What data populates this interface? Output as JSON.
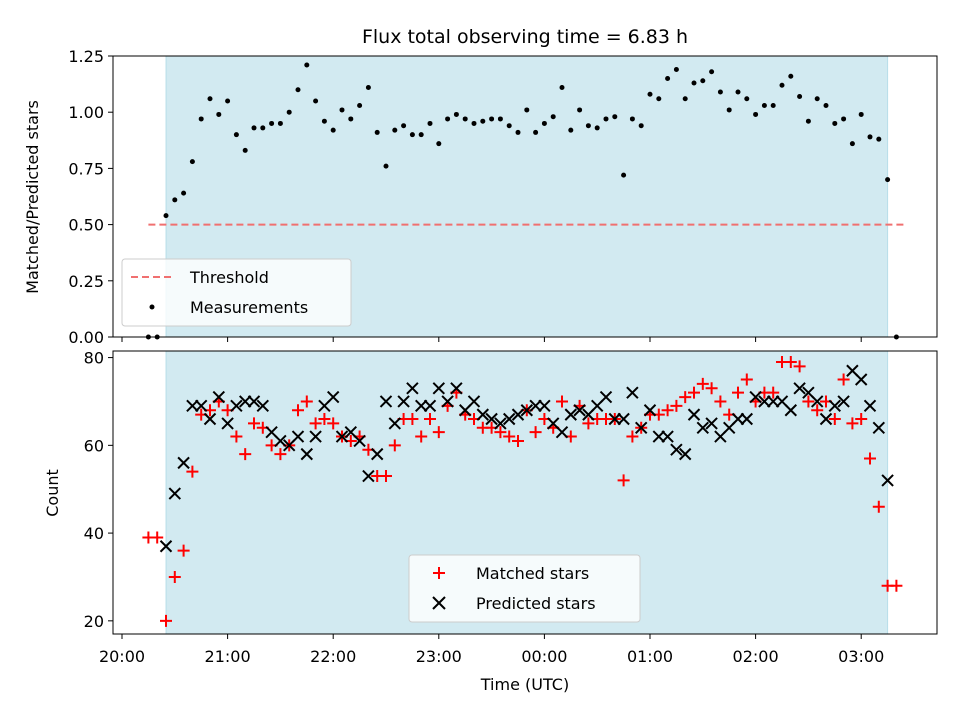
{
  "chart_data": [
    {
      "type": "scatter",
      "title": "Flux total observing time = 6.83 h",
      "ylabel": "Matched/Predicted stars",
      "ylim": [
        0,
        1.25
      ],
      "yticks": [
        "0.00",
        "0.25",
        "0.50",
        "0.75",
        "1.00",
        "1.25"
      ],
      "grid": false,
      "legend_position": "lower-left",
      "observing_span": [
        "20:25",
        "03:15"
      ],
      "threshold": {
        "name": "Threshold",
        "value": 0.5,
        "x_range": [
          "20:15",
          "03:25"
        ],
        "color": "#f07070"
      },
      "series": [
        {
          "name": "Measurements",
          "color": "#000000",
          "x": [
            "20:15",
            "20:20",
            "20:25",
            "20:30",
            "20:35",
            "20:40",
            "20:45",
            "20:50",
            "20:55",
            "21:00",
            "21:05",
            "21:10",
            "21:15",
            "21:20",
            "21:25",
            "21:30",
            "21:35",
            "21:40",
            "21:45",
            "21:50",
            "21:55",
            "22:00",
            "22:05",
            "22:10",
            "22:15",
            "22:20",
            "22:25",
            "22:30",
            "22:35",
            "22:40",
            "22:45",
            "22:50",
            "22:55",
            "23:00",
            "23:05",
            "23:10",
            "23:15",
            "23:20",
            "23:25",
            "23:30",
            "23:35",
            "23:40",
            "23:45",
            "23:50",
            "23:55",
            "00:00",
            "00:05",
            "00:10",
            "00:15",
            "00:20",
            "00:25",
            "00:30",
            "00:35",
            "00:40",
            "00:45",
            "00:50",
            "00:55",
            "01:00",
            "01:05",
            "01:10",
            "01:15",
            "01:20",
            "01:25",
            "01:30",
            "01:35",
            "01:40",
            "01:45",
            "01:50",
            "01:55",
            "02:00",
            "02:05",
            "02:10",
            "02:15",
            "02:20",
            "02:25",
            "02:30",
            "02:35",
            "02:40",
            "02:45",
            "02:50",
            "02:55",
            "03:00",
            "03:05",
            "03:10",
            "03:15",
            "03:20"
          ],
          "y": [
            0.0,
            0.0,
            0.54,
            0.61,
            0.64,
            0.78,
            0.97,
            1.06,
            0.99,
            1.05,
            0.9,
            0.83,
            0.93,
            0.93,
            0.95,
            0.95,
            1.0,
            1.1,
            1.21,
            1.05,
            0.96,
            0.92,
            1.01,
            0.97,
            1.03,
            1.11,
            0.91,
            0.76,
            0.92,
            0.94,
            0.9,
            0.9,
            0.95,
            0.86,
            0.97,
            0.99,
            0.97,
            0.95,
            0.96,
            0.97,
            0.97,
            0.94,
            0.91,
            1.01,
            0.91,
            0.95,
            0.98,
            1.11,
            0.92,
            1.01,
            0.94,
            0.93,
            0.97,
            0.98,
            0.72,
            0.97,
            0.94,
            1.08,
            1.06,
            1.15,
            1.19,
            1.06,
            1.13,
            1.14,
            1.18,
            1.09,
            1.01,
            1.09,
            1.06,
            0.99,
            1.03,
            1.03,
            1.12,
            1.16,
            1.07,
            0.96,
            1.06,
            1.03,
            0.95,
            0.97,
            0.86,
            0.99,
            0.89,
            0.88,
            0.7,
            0.0
          ]
        }
      ]
    },
    {
      "type": "scatter",
      "xlabel": "Time (UTC)",
      "ylabel": "Count",
      "ylim": [
        17,
        81.5
      ],
      "yticks": [
        "20",
        "40",
        "60",
        "80"
      ],
      "xticks": [
        "20:00",
        "21:00",
        "22:00",
        "23:00",
        "00:00",
        "01:00",
        "02:00",
        "03:00"
      ],
      "grid": false,
      "legend_position": "lower-center",
      "observing_span": [
        "20:25",
        "03:15"
      ],
      "series": [
        {
          "name": "Matched stars",
          "marker": "plus",
          "color": "#ff0000",
          "x": [
            "20:15",
            "20:20",
            "20:25",
            "20:30",
            "20:35",
            "20:40",
            "20:45",
            "20:50",
            "20:55",
            "21:00",
            "21:05",
            "21:10",
            "21:15",
            "21:20",
            "21:25",
            "21:30",
            "21:35",
            "21:40",
            "21:45",
            "21:50",
            "21:55",
            "22:00",
            "22:05",
            "22:10",
            "22:15",
            "22:20",
            "22:25",
            "22:30",
            "22:35",
            "22:40",
            "22:45",
            "22:50",
            "22:55",
            "23:00",
            "23:05",
            "23:10",
            "23:15",
            "23:20",
            "23:25",
            "23:30",
            "23:35",
            "23:40",
            "23:45",
            "23:50",
            "23:55",
            "00:00",
            "00:05",
            "00:10",
            "00:15",
            "00:20",
            "00:25",
            "00:30",
            "00:35",
            "00:40",
            "00:45",
            "00:50",
            "00:55",
            "01:00",
            "01:05",
            "01:10",
            "01:15",
            "01:20",
            "01:25",
            "01:30",
            "01:35",
            "01:40",
            "01:45",
            "01:50",
            "01:55",
            "02:00",
            "02:05",
            "02:10",
            "02:15",
            "02:20",
            "02:25",
            "02:30",
            "02:35",
            "02:40",
            "02:45",
            "02:50",
            "02:55",
            "03:00",
            "03:05",
            "03:10",
            "03:15",
            "03:20"
          ],
          "y": [
            39,
            39,
            20,
            30,
            36,
            54,
            67,
            68,
            70,
            68,
            62,
            58,
            65,
            64,
            60,
            58,
            60,
            68,
            70,
            65,
            66,
            65,
            62,
            61,
            62,
            59,
            53,
            53,
            60,
            66,
            66,
            62,
            66,
            63,
            69,
            72,
            67,
            66,
            64,
            64,
            63,
            62,
            61,
            68,
            63,
            66,
            64,
            70,
            62,
            69,
            65,
            66,
            66,
            66,
            52,
            62,
            64,
            67,
            67,
            68,
            69,
            71,
            72,
            74,
            73,
            70,
            67,
            72,
            75,
            70,
            72,
            72,
            79,
            79,
            78,
            70,
            68,
            70,
            66,
            75,
            65,
            66,
            57,
            46,
            28,
            28
          ]
        },
        {
          "name": "Predicted stars",
          "marker": "x",
          "color": "#000000",
          "x": [
            "20:25",
            "20:30",
            "20:35",
            "20:40",
            "20:45",
            "20:50",
            "20:55",
            "21:00",
            "21:05",
            "21:10",
            "21:15",
            "21:20",
            "21:25",
            "21:30",
            "21:35",
            "21:40",
            "21:45",
            "21:50",
            "21:55",
            "22:00",
            "22:05",
            "22:10",
            "22:15",
            "22:20",
            "22:25",
            "22:30",
            "22:35",
            "22:40",
            "22:45",
            "22:50",
            "22:55",
            "23:00",
            "23:05",
            "23:10",
            "23:15",
            "23:20",
            "23:25",
            "23:30",
            "23:35",
            "23:40",
            "23:45",
            "23:50",
            "23:55",
            "00:00",
            "00:05",
            "00:10",
            "00:15",
            "00:20",
            "00:25",
            "00:30",
            "00:35",
            "00:40",
            "00:45",
            "00:50",
            "00:55",
            "01:00",
            "01:05",
            "01:10",
            "01:15",
            "01:20",
            "01:25",
            "01:30",
            "01:35",
            "01:40",
            "01:45",
            "01:50",
            "01:55",
            "02:00",
            "02:05",
            "02:10",
            "02:15",
            "02:20",
            "02:25",
            "02:30",
            "02:35",
            "02:40",
            "02:45",
            "02:50",
            "02:55",
            "03:00",
            "03:05",
            "03:10",
            "03:15"
          ],
          "y": [
            37,
            49,
            56,
            69,
            69,
            66,
            71,
            65,
            69,
            70,
            70,
            69,
            63,
            61,
            60,
            62,
            58,
            62,
            69,
            71,
            62,
            63,
            61,
            53,
            58,
            70,
            65,
            70,
            73,
            69,
            69,
            73,
            70,
            73,
            68,
            70,
            67,
            66,
            65,
            66,
            67,
            68,
            69,
            69,
            65,
            63,
            67,
            68,
            67,
            69,
            71,
            66,
            66,
            72,
            64,
            68,
            62,
            62,
            59,
            58,
            67,
            64,
            65,
            62,
            64,
            66,
            66,
            71,
            70,
            70,
            70,
            68,
            73,
            72,
            70,
            66,
            69,
            70,
            77,
            75,
            69,
            64,
            52
          ]
        }
      ]
    }
  ]
}
